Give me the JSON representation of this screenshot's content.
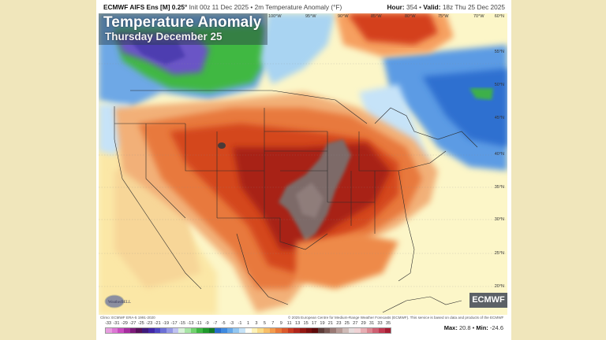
{
  "header": {
    "model_name": "ECMWF AIFS Ens [M] 0.25°",
    "init_text": "Init 00z 11 Dec 2025",
    "separator": "•",
    "product": "2m Temperature Anomaly (°F)",
    "hour_label": "Hour:",
    "hour_value": "354",
    "valid_label": "Valid:",
    "valid_value": "18z Thu 25 Dec 2025"
  },
  "title": {
    "main": "Temperature Anomaly",
    "sub": "Thursday December 25"
  },
  "map": {
    "region": "North America / CONUS",
    "longitude_labels": [
      "120°W",
      "115°W",
      "110°W",
      "105°W",
      "100°W",
      "95°W",
      "90°W",
      "85°W",
      "80°W",
      "75°W",
      "70°W"
    ],
    "latitude_labels": [
      "60°N",
      "55°N",
      "50°N",
      "45°N",
      "40°N",
      "35°N",
      "30°N",
      "25°N",
      "20°N"
    ],
    "brand_logo": "ECMWF",
    "watermark_logo": "WeatherBELL",
    "colors": {
      "background_page": "#f0e6bb",
      "neutral": "#fcf6c8",
      "warm_light": "#f6c98a",
      "warm_mid": "#e8793c",
      "warm_strong": "#c9321b",
      "warm_very_strong": "#8d1a12",
      "warm_extreme_gray": "#7d6b68",
      "cold_light": "#a9d4f2",
      "cold_mid": "#4d93e0",
      "cold_strong": "#2a62c6",
      "cold_green": "#3cb04a",
      "cold_purple": "#6a55c6"
    }
  },
  "credits": {
    "climo": "Climo: ECMWF ERA-5 1991-2020",
    "copyright": "© 2025 European Centre for Medium-Range Weather Forecasts (ECMWF). This service is based on data and products of the ECMWF"
  },
  "legend": {
    "unit": "°F",
    "ticks": [
      "-33",
      "-31",
      "-29",
      "-27",
      "-25",
      "-23",
      "-21",
      "-19",
      "-17",
      "-15",
      "-13",
      "-11",
      "-9",
      "-7",
      "-5",
      "-3",
      "-1",
      "1",
      "3",
      "5",
      "7",
      "9",
      "11",
      "13",
      "15",
      "17",
      "19",
      "21",
      "23",
      "25",
      "27",
      "29",
      "31",
      "33",
      "35"
    ],
    "colors": [
      "#e79ee0",
      "#dc77d4",
      "#c94dc0",
      "#a62c9f",
      "#7d1a7a",
      "#57105a",
      "#3f1a7c",
      "#4126a8",
      "#4d47c4",
      "#6c70d6",
      "#9599e6",
      "#c0c3f2",
      "#d9f2d9",
      "#a8e5a6",
      "#72d36f",
      "#3fb843",
      "#1f9a2c",
      "#137a26",
      "#2a6ccc",
      "#3e8ae0",
      "#65a8ea",
      "#93c7f2",
      "#c6e3f8",
      "#fdfdf6",
      "#fdf2b8",
      "#fbdc88",
      "#f8be67",
      "#f49c4e",
      "#ea7a3a",
      "#dc5a2c",
      "#c83a21",
      "#b0241a",
      "#951813",
      "#7a0f0e",
      "#5e0a0a",
      "#5d3c38",
      "#7a5a55",
      "#9a7a75",
      "#b79b96",
      "#d0bcb8",
      "#e6dcdc",
      "#f0d3d5",
      "#e7aeb3",
      "#dc8791",
      "#cf6072",
      "#c13a52",
      "#a71e34"
    ]
  },
  "stats": {
    "max_label": "Max:",
    "max_value": "20.8",
    "min_label": "Min:",
    "min_value": "-24.6",
    "separator": "•"
  }
}
